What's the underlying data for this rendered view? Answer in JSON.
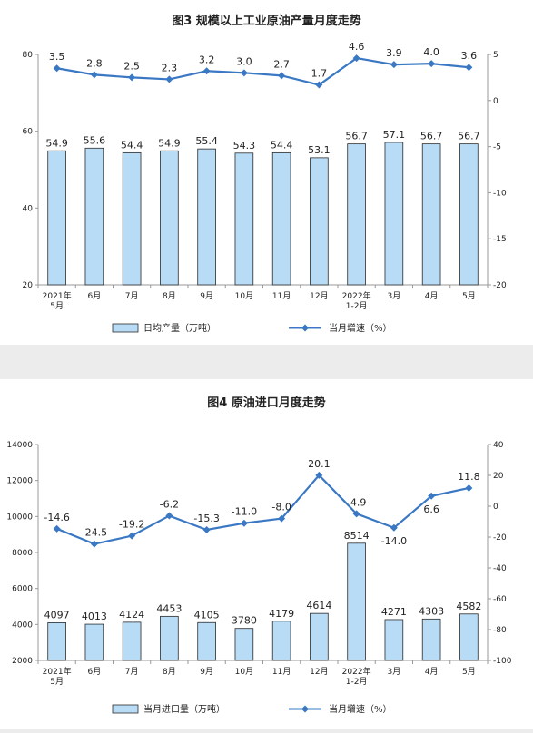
{
  "chart_data": [
    {
      "type": "bar",
      "title": "图3  规模以上工业原油产量月度走势",
      "categories": [
        [
          "2021年",
          "5月"
        ],
        [
          "6月"
        ],
        [
          "7月"
        ],
        [
          "8月"
        ],
        [
          "9月"
        ],
        [
          "10月"
        ],
        [
          "11月"
        ],
        [
          "12月"
        ],
        [
          "2022年",
          "1-2月"
        ],
        [
          "3月"
        ],
        [
          "4月"
        ],
        [
          "5月"
        ]
      ],
      "y_left": {
        "min": 20,
        "max": 80,
        "ticks": [
          "20",
          "40",
          "60",
          "80"
        ]
      },
      "y_right": {
        "min": -20,
        "max": 5,
        "ticks": [
          "-20",
          "-15",
          "-10",
          "-5",
          "0",
          "5"
        ]
      },
      "series": [
        {
          "name": "日均产量（万吨）",
          "kind": "bar",
          "axis": "left",
          "values": [
            54.9,
            55.6,
            54.4,
            54.9,
            55.4,
            54.3,
            54.4,
            53.1,
            56.7,
            57.1,
            56.7,
            56.7
          ],
          "labels": [
            "54.9",
            "55.6",
            "54.4",
            "54.9",
            "55.4",
            "54.3",
            "54.4",
            "53.1",
            "56.7",
            "57.1",
            "56.7",
            "56.7"
          ]
        },
        {
          "name": "当月增速（%）",
          "kind": "line",
          "axis": "right",
          "values": [
            3.5,
            2.8,
            2.5,
            2.3,
            3.2,
            3.0,
            2.7,
            1.7,
            4.6,
            3.9,
            4.0,
            3.6
          ],
          "labels": [
            "3.5",
            "2.8",
            "2.5",
            "2.3",
            "3.2",
            "3.0",
            "2.7",
            "1.7",
            "4.6",
            "3.9",
            "4.0",
            "3.6"
          ]
        }
      ],
      "legend": "bottom",
      "colors": {
        "bar_fill": "#b9dcf6",
        "bar_stroke": "#2a2a2a",
        "line": "#3a78c4"
      }
    },
    {
      "type": "bar",
      "title": "图4  原油进口月度走势",
      "categories": [
        [
          "2021年",
          "5月"
        ],
        [
          "6月"
        ],
        [
          "7月"
        ],
        [
          "8月"
        ],
        [
          "9月"
        ],
        [
          "10月"
        ],
        [
          "11月"
        ],
        [
          "12月"
        ],
        [
          "2022年",
          "1-2月"
        ],
        [
          "3月"
        ],
        [
          "4月"
        ],
        [
          "5月"
        ]
      ],
      "y_left": {
        "min": 2000,
        "max": 14000,
        "ticks": [
          "2000",
          "4000",
          "6000",
          "8000",
          "10000",
          "12000",
          "14000"
        ]
      },
      "y_right": {
        "min": -100,
        "max": 40,
        "ticks": [
          "-100",
          "-80",
          "-60",
          "-40",
          "-20",
          "0",
          "20",
          "40"
        ]
      },
      "series": [
        {
          "name": "当月进口量（万吨）",
          "kind": "bar",
          "axis": "left",
          "values": [
            4097,
            4013,
            4124,
            4453,
            4105,
            3780,
            4179,
            4614,
            8514,
            4271,
            4303,
            4582
          ],
          "labels": [
            "4097",
            "4013",
            "4124",
            "4453",
            "4105",
            "3780",
            "4179",
            "4614",
            "8514",
            "4271",
            "4303",
            "4582"
          ]
        },
        {
          "name": "当月增速（%）",
          "kind": "line",
          "axis": "right",
          "values": [
            -14.6,
            -24.5,
            -19.2,
            -6.2,
            -15.3,
            -11.0,
            -8.0,
            20.1,
            -4.9,
            -14.0,
            6.6,
            11.8
          ],
          "labels": [
            "-14.6",
            "-24.5",
            "-19.2",
            "-6.2",
            "-15.3",
            "-11.0",
            "-8.0",
            "20.1",
            "-4.9",
            "-14.0",
            "6.6",
            "11.8"
          ]
        }
      ],
      "legend": "bottom",
      "colors": {
        "bar_fill": "#b9dcf6",
        "bar_stroke": "#2a2a2a",
        "line": "#3a78c4"
      }
    }
  ]
}
